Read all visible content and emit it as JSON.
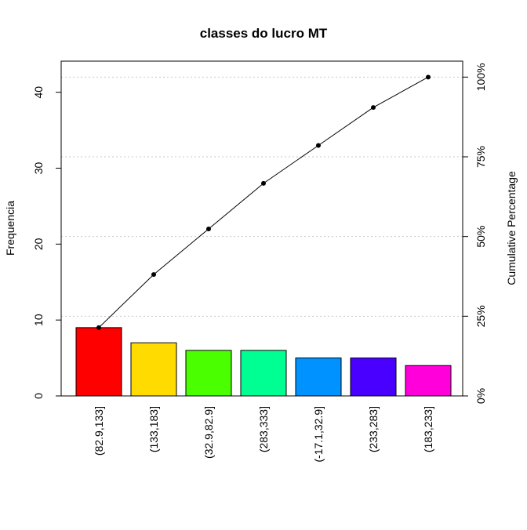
{
  "chart_data": {
    "type": "pareto",
    "title": "classes do lucro MT",
    "ylabel": "Frequencia",
    "y2label": "Cumulative Percentage",
    "categories": [
      "(82.9,133]",
      "(133,183]",
      "(32.9,82.9]",
      "(283,333]",
      "(-17.1,32.9]",
      "(233,283]",
      "(183,233]"
    ],
    "values": [
      9,
      7,
      6,
      6,
      5,
      5,
      4
    ],
    "colors": [
      "#FF0000",
      "#FFDB00",
      "#49FF00",
      "#00FF92",
      "#0092FF",
      "#4900FF",
      "#FF00DB"
    ],
    "ylim": [
      0,
      44.1
    ],
    "yticks": [
      0,
      10,
      20,
      30,
      40
    ],
    "y2lim": [
      0,
      105
    ],
    "y2ticks": [
      {
        "value": 0,
        "label": "0%"
      },
      {
        "value": 25,
        "label": "25%"
      },
      {
        "value": 50,
        "label": "50%"
      },
      {
        "value": 75,
        "label": "75%"
      },
      {
        "value": 100,
        "label": "100%"
      }
    ],
    "grid": true
  }
}
